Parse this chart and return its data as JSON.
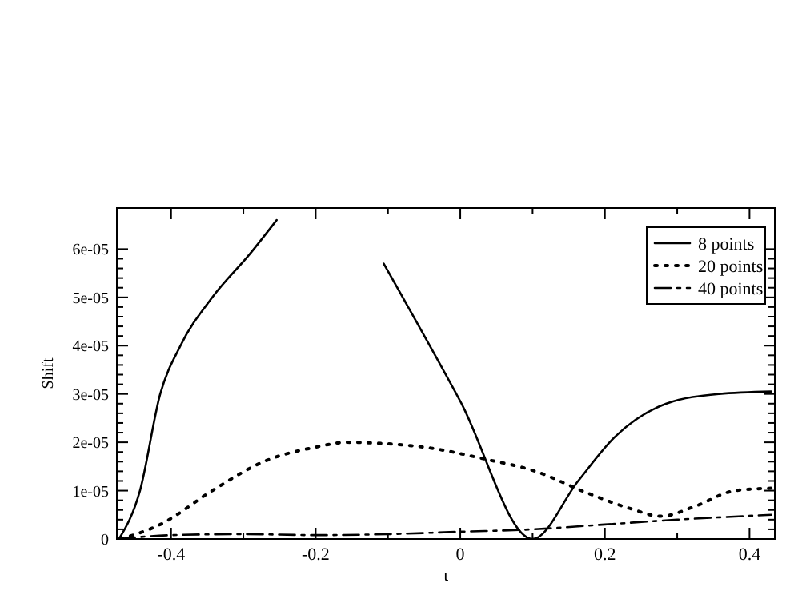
{
  "chart_data": {
    "type": "line",
    "xlabel": "τ",
    "ylabel": "Shift",
    "xlim": [
      -0.475,
      0.435
    ],
    "ylim": [
      0,
      6.85e-05
    ],
    "xticks": [
      {
        "value": -0.4,
        "label": "-0.4"
      },
      {
        "value": -0.3,
        "label": null
      },
      {
        "value": -0.2,
        "label": "-0.2"
      },
      {
        "value": -0.1,
        "label": null
      },
      {
        "value": 0,
        "label": "0"
      },
      {
        "value": 0.1,
        "label": null
      },
      {
        "value": 0.2,
        "label": "0.2"
      },
      {
        "value": 0.3,
        "label": null
      },
      {
        "value": 0.4,
        "label": "0.4"
      }
    ],
    "yticks": [
      {
        "value": 0,
        "label": "0"
      },
      {
        "value": 1e-05,
        "label": "1e-05"
      },
      {
        "value": 2e-05,
        "label": "2e-05"
      },
      {
        "value": 3e-05,
        "label": "3e-05"
      },
      {
        "value": 4e-05,
        "label": "4e-05"
      },
      {
        "value": 5e-05,
        "label": "5e-05"
      },
      {
        "value": 6e-05,
        "label": "6e-05"
      }
    ],
    "legend": "top right",
    "grid": false,
    "series": [
      {
        "name": "8 points",
        "color": "#000000",
        "line_style": "solid",
        "x": [
          -0.472,
          -0.443,
          -0.415,
          -0.387,
          -0.343,
          -0.291,
          -0.254,
          -0.226,
          -0.178,
          -0.106,
          0,
          0.1,
          0.163,
          0.213,
          0.285,
          0.358,
          0.43
        ],
        "values": [
          0,
          1e-05,
          3e-05,
          4e-05,
          5e-05,
          5.9e-05,
          6.6e-05,
          null,
          null,
          5.7e-05,
          2.85e-05,
          0,
          1.2e-05,
          2.1e-05,
          2.8e-05,
          3e-05,
          3.05e-05
        ]
      },
      {
        "name": "20 points",
        "color": "#000000",
        "line_style": "dotted",
        "x": [
          -0.47,
          -0.415,
          -0.343,
          -0.272,
          -0.2,
          -0.157,
          -0.113,
          -0.041,
          0.032,
          0.104,
          0.176,
          0.235,
          0.278,
          0.322,
          0.38,
          0.43
        ],
        "values": [
          0,
          3e-06,
          1e-05,
          1.6e-05,
          1.9e-05,
          2e-05,
          1.98e-05,
          1.88e-05,
          1.66e-05,
          1.4e-05,
          9.5e-06,
          6.3e-06,
          4.7e-06,
          6.6e-06,
          1e-05,
          1.05e-05
        ]
      },
      {
        "name": "40 points",
        "color": "#000000",
        "line_style": "dashdot",
        "x": [
          -0.472,
          -0.4,
          -0.3,
          -0.2,
          -0.1,
          0,
          0.1,
          0.2,
          0.3,
          0.43
        ],
        "values": [
          0,
          8e-07,
          1e-06,
          8e-07,
          1e-06,
          1.5e-06,
          2e-06,
          3e-06,
          4e-06,
          5e-06
        ]
      }
    ]
  }
}
